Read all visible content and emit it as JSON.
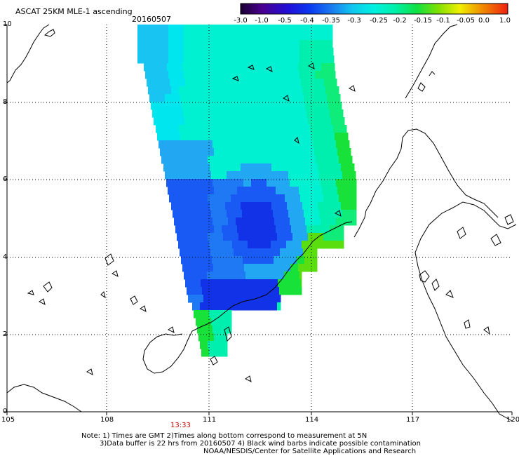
{
  "header": {
    "title": "ASCAT 25KM MLE-1 ascending",
    "date": "20160507"
  },
  "colorbar": {
    "tick_labels": [
      "-3.0",
      "-1.0",
      "-0.5",
      "-0.4",
      "-0.35",
      "-0.3",
      "-0.25",
      "-0.2",
      "-0.15",
      "-0.1",
      "-0.05",
      "0.0",
      "1.0"
    ],
    "colors": [
      "#2a0050",
      "#5a0090",
      "#2a10d0",
      "#0a46f0",
      "#1478f0",
      "#10c8f0",
      "#00f0e0",
      "#00f0a0",
      "#10e040",
      "#80e000",
      "#f0f000",
      "#f09000",
      "#f03010"
    ]
  },
  "map": {
    "x_axis_labels": [
      "105",
      "108",
      "111",
      "114",
      "117",
      "120"
    ],
    "y_axis_labels": [
      "0",
      "2",
      "4",
      "6",
      "8",
      "10"
    ],
    "time_marker": "13:33",
    "time_marker_color": "#cc0000",
    "land_color": "#000000",
    "grid_color": "#000000"
  },
  "footer": {
    "note_line1": "Note: 1) Times are GMT 2)Times along bottom correspond to measurement at 5N",
    "note_line2": "3)Data buffer is 22 hrs from 20160507 4) Black wind barbs indicate possible contamination",
    "note_line3": "NOAA/NESDIS/Center for Satellite Applications and Research"
  }
}
